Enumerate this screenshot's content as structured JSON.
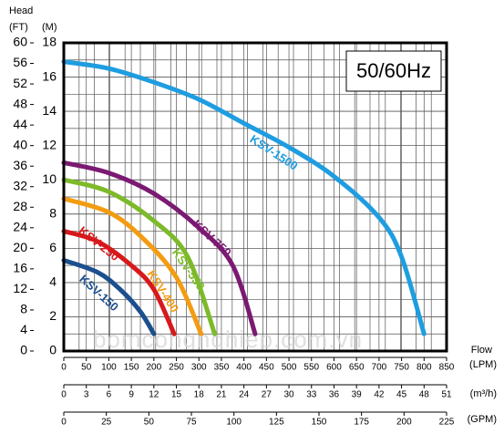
{
  "chart_data": {
    "type": "line",
    "title": "50/60Hz",
    "head_label": "Head",
    "ylabel": "(M)",
    "ylim": [
      0,
      18
    ],
    "yticks": [
      0,
      2,
      4,
      6,
      8,
      10,
      12,
      14,
      16,
      18
    ],
    "y2label": "(FT)",
    "y2lim": [
      0,
      60
    ],
    "y2ticks": [
      0,
      4,
      8,
      12,
      16,
      20,
      24,
      28,
      32,
      36,
      40,
      44,
      48,
      52,
      56,
      60
    ],
    "xlabel": "Flow",
    "x1label": "(LPM)",
    "xlim": [
      0,
      850
    ],
    "xticks": [
      0,
      50,
      100,
      150,
      200,
      250,
      300,
      350,
      400,
      450,
      500,
      550,
      600,
      650,
      700,
      750,
      800,
      850
    ],
    "x2label": "(m³/h)",
    "x2lim": [
      0,
      51
    ],
    "x2ticks": [
      0,
      3,
      6,
      9,
      12,
      15,
      18,
      21,
      24,
      27,
      30,
      33,
      36,
      39,
      42,
      45,
      48,
      51
    ],
    "x3label": "(GPM)",
    "x3lim": [
      0,
      225
    ],
    "x3ticks": [
      0,
      25,
      50,
      75,
      100,
      125,
      150,
      175,
      200,
      225
    ],
    "grid": true,
    "watermark": "bomcongnghiep.com.vn",
    "series": [
      {
        "name": "KSV-1500",
        "color": "#1e9de0",
        "x": [
          0,
          100,
          200,
          300,
          400,
          500,
          600,
          700,
          750,
          800
        ],
        "values": [
          16.9,
          16.5,
          15.7,
          14.7,
          13.3,
          11.9,
          10.2,
          7.8,
          5.5,
          1.0
        ]
      },
      {
        "name": "KSV-750",
        "color": "#7b1a72",
        "x": [
          0,
          100,
          200,
          300,
          375,
          425
        ],
        "values": [
          11,
          10.4,
          9.2,
          7.2,
          5,
          1
        ]
      },
      {
        "name": "KSV-550",
        "color": "#7dba2a",
        "x": [
          0,
          100,
          200,
          275,
          335
        ],
        "values": [
          10,
          9.3,
          7.6,
          5.5,
          1
        ]
      },
      {
        "name": "KSV-400",
        "color": "#f39c12",
        "x": [
          0,
          100,
          175,
          250,
          305
        ],
        "values": [
          8.9,
          8.1,
          6.6,
          4.3,
          1
        ]
      },
      {
        "name": "KSV-250",
        "color": "#d7191c",
        "x": [
          0,
          75,
          150,
          200,
          245
        ],
        "values": [
          7,
          6.4,
          5.0,
          3.6,
          1
        ]
      },
      {
        "name": "KSV-150",
        "color": "#1b4f8e",
        "x": [
          0,
          75,
          125,
          170,
          200
        ],
        "values": [
          5.3,
          4.6,
          3.6,
          2.3,
          1
        ]
      }
    ]
  }
}
